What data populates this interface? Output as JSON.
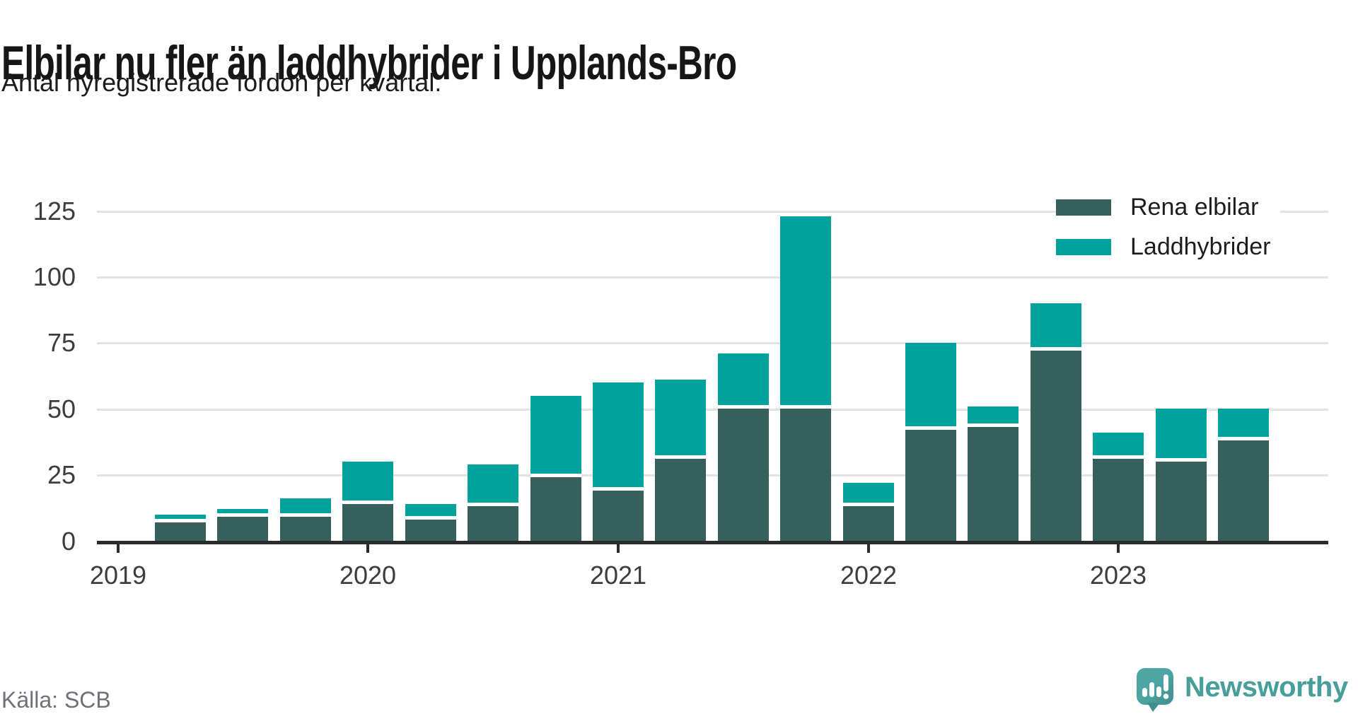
{
  "header": {
    "title": "Elbilar nu fler än laddhybrider i Upplands-Bro",
    "subtitle": "Antal nyregistrerade fordon per kvartal."
  },
  "footer": {
    "source": "Källa: SCB",
    "brand_name": "Newsworthy"
  },
  "colors": {
    "electric": "#35605b",
    "hybrid": "#00a29b",
    "grid": "#e3e3e3",
    "axis": "#2b2b2b",
    "brand": "#479e9b"
  },
  "legend": {
    "items": [
      {
        "label": "Rena elbilar",
        "color": "#35605b"
      },
      {
        "label": "Laddhybrider",
        "color": "#00a29b"
      }
    ]
  },
  "chart_data": {
    "type": "bar",
    "stacked": true,
    "title": "Elbilar nu fler än laddhybrider i Upplands-Bro",
    "subtitle": "Antal nyregistrerade fordon per kvartal.",
    "categories": [
      "2019 Q2",
      "2019 Q3",
      "2019 Q4",
      "2020 Q1",
      "2020 Q2",
      "2020 Q3",
      "2020 Q4",
      "2021 Q1",
      "2021 Q2",
      "2021 Q3",
      "2021 Q4",
      "2022 Q1",
      "2022 Q2",
      "2022 Q3",
      "2022 Q4",
      "2023 Q1",
      "2023 Q2",
      "2023 Q3"
    ],
    "series": [
      {
        "name": "Rena elbilar",
        "color": "#35605b",
        "values": [
          7,
          9,
          9,
          14,
          8,
          13,
          24,
          19,
          31,
          50,
          50,
          13,
          42,
          43,
          72,
          31,
          30,
          38
        ]
      },
      {
        "name": "Laddhybrider",
        "color": "#00a29b",
        "values": [
          3,
          3,
          7,
          16,
          6,
          16,
          31,
          41,
          30,
          21,
          73,
          9,
          33,
          8,
          18,
          10,
          20,
          12
        ]
      }
    ],
    "x_tick_labels": [
      "2019",
      "2020",
      "2021",
      "2022",
      "2023"
    ],
    "y_ticks": [
      0,
      25,
      50,
      75,
      100,
      125
    ],
    "ylim": [
      0,
      125
    ],
    "grid": true,
    "legend_position": "top-right",
    "ylabel": "",
    "xlabel": ""
  }
}
